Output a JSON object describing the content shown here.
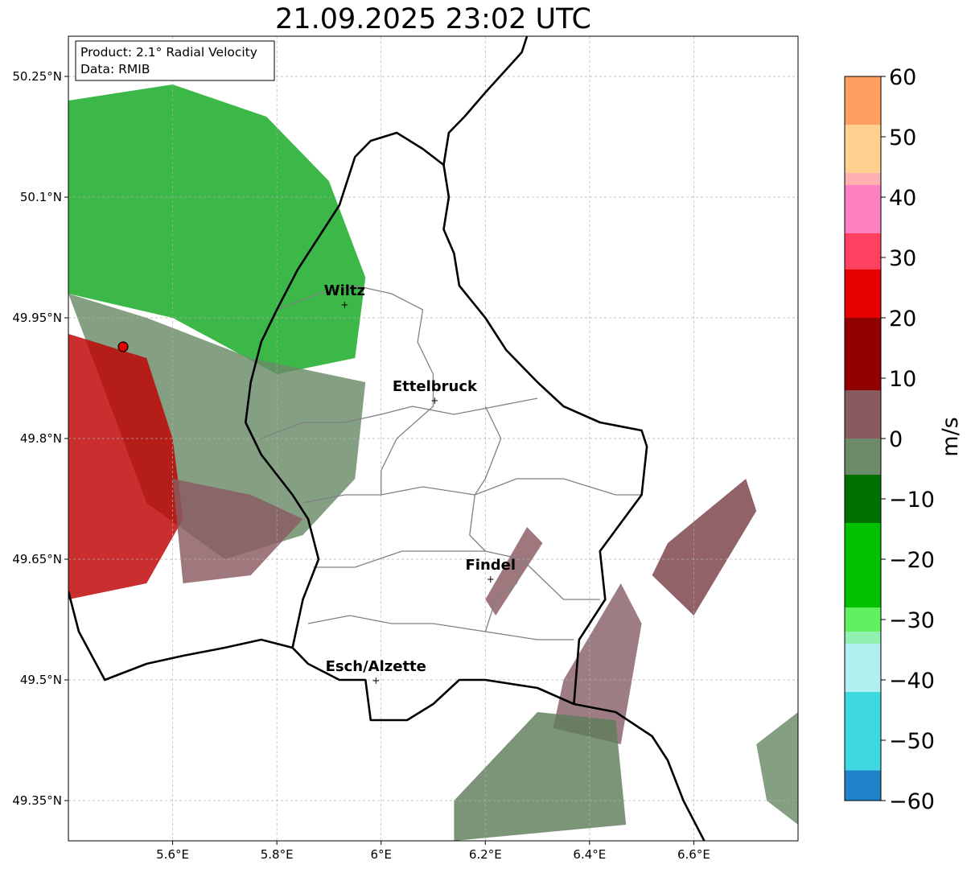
{
  "title": "21.09.2025 23:02 UTC",
  "info_box": {
    "line1": "Product: 2.1° Radial Velocity",
    "line2": "Data: RMIB"
  },
  "map": {
    "lon_range": [
      5.4,
      6.8
    ],
    "lat_range": [
      49.3,
      50.3
    ],
    "lon_ticks": [
      {
        "v": 5.6,
        "label": "5.6°E"
      },
      {
        "v": 5.8,
        "label": "5.8°E"
      },
      {
        "v": 6.0,
        "label": "6°E"
      },
      {
        "v": 6.2,
        "label": "6.2°E"
      },
      {
        "v": 6.4,
        "label": "6.4°E"
      },
      {
        "v": 6.6,
        "label": "6.6°E"
      }
    ],
    "lat_ticks": [
      {
        "v": 50.25,
        "label": "50.25°N"
      },
      {
        "v": 50.1,
        "label": "50.1°N"
      },
      {
        "v": 49.95,
        "label": "49.95°N"
      },
      {
        "v": 49.8,
        "label": "49.8°N"
      },
      {
        "v": 49.65,
        "label": "49.65°N"
      },
      {
        "v": 49.5,
        "label": "49.5°N"
      },
      {
        "v": 49.35,
        "label": "49.35°N"
      }
    ],
    "radar_site": {
      "lon": 5.505,
      "lat": 49.914
    },
    "cities": [
      {
        "name": "Wiltz",
        "lon": 5.93,
        "lat": 49.967
      },
      {
        "name": "Ettelbruck",
        "lon": 6.103,
        "lat": 49.848
      },
      {
        "name": "Findel",
        "lon": 6.21,
        "lat": 49.626
      },
      {
        "name": "Esch/Alzette",
        "lon": 5.99,
        "lat": 49.5
      }
    ],
    "colors": {
      "border": "#000000",
      "cantons": "#808080",
      "grid": "#b0b0b0",
      "radar_site": "#dd0000"
    }
  },
  "colorbar": {
    "label": "m/s",
    "range": [
      -60,
      60
    ],
    "ticks": [
      60,
      50,
      40,
      30,
      20,
      10,
      0,
      -10,
      -20,
      -30,
      -40,
      -50,
      -60
    ],
    "tick_labels": [
      "60",
      "50",
      "40",
      "30",
      "20",
      "10",
      "0",
      "−10",
      "−20",
      "−30",
      "−40",
      "−50",
      "−60"
    ],
    "bands": [
      {
        "from": 52,
        "to": 60,
        "color": "#ffa060"
      },
      {
        "from": 44,
        "to": 52,
        "color": "#ffd090"
      },
      {
        "from": 42,
        "to": 44,
        "color": "#ffb0b0"
      },
      {
        "from": 34,
        "to": 42,
        "color": "#ff80c0"
      },
      {
        "from": 28,
        "to": 34,
        "color": "#ff4060"
      },
      {
        "from": 20,
        "to": 28,
        "color": "#e80000"
      },
      {
        "from": 8,
        "to": 20,
        "color": "#900000"
      },
      {
        "from": 0,
        "to": 8,
        "color": "#8a5a62"
      },
      {
        "from": -6,
        "to": 0,
        "color": "#6a8a68"
      },
      {
        "from": -14,
        "to": -6,
        "color": "#007000"
      },
      {
        "from": -28,
        "to": -14,
        "color": "#00c000"
      },
      {
        "from": -32,
        "to": -28,
        "color": "#60f060"
      },
      {
        "from": -34,
        "to": -32,
        "color": "#90f0b0"
      },
      {
        "from": -42,
        "to": -34,
        "color": "#b0f0f0"
      },
      {
        "from": -55,
        "to": -42,
        "color": "#40d8e0"
      },
      {
        "from": -60,
        "to": -55,
        "color": "#2080c8"
      }
    ]
  },
  "echo_regions": [
    {
      "name": "green-inbound",
      "color": "#10a820",
      "points": [
        [
          5.4,
          50.22
        ],
        [
          5.6,
          50.24
        ],
        [
          5.78,
          50.2
        ],
        [
          5.9,
          50.12
        ],
        [
          5.97,
          50.0
        ],
        [
          5.95,
          49.9
        ],
        [
          5.8,
          49.88
        ],
        [
          5.6,
          49.95
        ],
        [
          5.4,
          49.98
        ]
      ]
    },
    {
      "name": "gray-near-zero",
      "color": "#6a8a68",
      "points": [
        [
          5.4,
          49.98
        ],
        [
          5.55,
          49.95
        ],
        [
          5.75,
          49.9
        ],
        [
          5.97,
          49.87
        ],
        [
          5.95,
          49.75
        ],
        [
          5.85,
          49.68
        ],
        [
          5.7,
          49.65
        ],
        [
          5.55,
          49.72
        ]
      ]
    },
    {
      "name": "red-outbound",
      "color": "#c00000",
      "points": [
        [
          5.4,
          49.93
        ],
        [
          5.55,
          49.9
        ],
        [
          5.6,
          49.8
        ],
        [
          5.62,
          49.7
        ],
        [
          5.55,
          49.62
        ],
        [
          5.4,
          49.6
        ]
      ]
    },
    {
      "name": "mauve-southwest",
      "color": "#8a5a62",
      "points": [
        [
          5.6,
          49.75
        ],
        [
          5.75,
          49.73
        ],
        [
          5.85,
          49.7
        ],
        [
          5.75,
          49.63
        ],
        [
          5.62,
          49.62
        ]
      ]
    },
    {
      "name": "mauve-east-cell",
      "color": "#7a4048",
      "points": [
        [
          6.55,
          49.67
        ],
        [
          6.7,
          49.75
        ],
        [
          6.72,
          49.71
        ],
        [
          6.6,
          49.58
        ],
        [
          6.52,
          49.63
        ]
      ]
    },
    {
      "name": "mauve-southeast",
      "color": "#886068",
      "points": [
        [
          6.35,
          49.5
        ],
        [
          6.46,
          49.62
        ],
        [
          6.5,
          49.57
        ],
        [
          6.46,
          49.42
        ],
        [
          6.33,
          49.44
        ]
      ]
    },
    {
      "name": "gray-southeast",
      "color": "#5f7e5c",
      "points": [
        [
          6.14,
          49.35
        ],
        [
          6.3,
          49.46
        ],
        [
          6.45,
          49.45
        ],
        [
          6.47,
          49.32
        ],
        [
          6.14,
          49.3
        ]
      ]
    },
    {
      "name": "gray-east-edge",
      "color": "#6a8a68",
      "points": [
        [
          6.72,
          49.42
        ],
        [
          6.8,
          49.46
        ],
        [
          6.8,
          49.32
        ],
        [
          6.74,
          49.35
        ]
      ]
    },
    {
      "name": "mauve-findel-streaks",
      "color": "#8a5a62",
      "points": [
        [
          6.2,
          49.6
        ],
        [
          6.28,
          49.69
        ],
        [
          6.31,
          49.67
        ],
        [
          6.22,
          49.58
        ]
      ]
    }
  ],
  "borders": {
    "luxembourg": [
      [
        5.98,
        50.17
      ],
      [
        6.03,
        50.18
      ],
      [
        6.08,
        50.16
      ],
      [
        6.12,
        50.14
      ],
      [
        6.13,
        50.1
      ],
      [
        6.12,
        50.06
      ],
      [
        6.14,
        50.03
      ],
      [
        6.15,
        49.99
      ],
      [
        6.2,
        49.95
      ],
      [
        6.24,
        49.91
      ],
      [
        6.3,
        49.87
      ],
      [
        6.35,
        49.84
      ],
      [
        6.42,
        49.82
      ],
      [
        6.5,
        49.81
      ],
      [
        6.51,
        49.79
      ],
      [
        6.5,
        49.73
      ],
      [
        6.42,
        49.66
      ],
      [
        6.43,
        49.6
      ],
      [
        6.38,
        49.55
      ],
      [
        6.37,
        49.47
      ],
      [
        6.3,
        49.49
      ],
      [
        6.2,
        49.5
      ],
      [
        6.15,
        49.5
      ],
      [
        6.1,
        49.47
      ],
      [
        6.05,
        49.45
      ],
      [
        5.98,
        49.45
      ],
      [
        5.97,
        49.5
      ],
      [
        5.92,
        49.5
      ],
      [
        5.86,
        49.52
      ],
      [
        5.83,
        49.54
      ],
      [
        5.85,
        49.6
      ],
      [
        5.88,
        49.65
      ],
      [
        5.86,
        49.7
      ],
      [
        5.83,
        49.73
      ],
      [
        5.77,
        49.78
      ],
      [
        5.74,
        49.82
      ],
      [
        5.75,
        49.87
      ],
      [
        5.77,
        49.92
      ],
      [
        5.8,
        49.96
      ],
      [
        5.84,
        50.01
      ],
      [
        5.88,
        50.05
      ],
      [
        5.92,
        50.09
      ],
      [
        5.95,
        50.15
      ],
      [
        5.98,
        50.17
      ]
    ],
    "germany_belgium": [
      [
        6.28,
        50.3
      ],
      [
        6.27,
        50.28
      ],
      [
        6.2,
        50.23
      ],
      [
        6.16,
        50.2
      ],
      [
        6.13,
        50.18
      ],
      [
        6.12,
        50.14
      ]
    ],
    "france_belgium": [
      [
        5.4,
        49.61
      ],
      [
        5.42,
        49.56
      ],
      [
        5.47,
        49.5
      ],
      [
        5.55,
        49.52
      ],
      [
        5.62,
        49.53
      ],
      [
        5.7,
        49.54
      ],
      [
        5.77,
        49.55
      ],
      [
        5.83,
        49.54
      ]
    ],
    "france_germany": [
      [
        6.37,
        49.47
      ],
      [
        6.45,
        49.46
      ],
      [
        6.52,
        49.43
      ],
      [
        6.55,
        49.4
      ],
      [
        6.58,
        49.35
      ],
      [
        6.62,
        49.3
      ]
    ]
  },
  "cantons": [
    [
      [
        5.8,
        49.96
      ],
      [
        5.88,
        49.98
      ],
      [
        5.95,
        49.99
      ],
      [
        6.02,
        49.98
      ],
      [
        6.08,
        49.96
      ]
    ],
    [
      [
        5.77,
        49.8
      ],
      [
        5.85,
        49.82
      ],
      [
        5.93,
        49.82
      ],
      [
        6.0,
        49.83
      ],
      [
        6.06,
        49.84
      ],
      [
        6.14,
        49.83
      ],
      [
        6.22,
        49.84
      ],
      [
        6.3,
        49.85
      ]
    ],
    [
      [
        5.85,
        49.72
      ],
      [
        5.93,
        49.73
      ],
      [
        6.0,
        49.73
      ],
      [
        6.08,
        49.74
      ],
      [
        6.18,
        49.73
      ],
      [
        6.26,
        49.75
      ],
      [
        6.35,
        49.75
      ],
      [
        6.45,
        49.73
      ],
      [
        6.5,
        49.73
      ]
    ],
    [
      [
        5.87,
        49.64
      ],
      [
        5.95,
        49.64
      ],
      [
        6.04,
        49.66
      ],
      [
        6.12,
        49.66
      ],
      [
        6.2,
        49.66
      ],
      [
        6.27,
        49.65
      ],
      [
        6.35,
        49.6
      ],
      [
        6.42,
        49.6
      ]
    ],
    [
      [
        5.86,
        49.57
      ],
      [
        5.94,
        49.58
      ],
      [
        6.02,
        49.57
      ],
      [
        6.1,
        49.57
      ],
      [
        6.2,
        49.56
      ],
      [
        6.3,
        49.55
      ],
      [
        6.37,
        49.55
      ]
    ],
    [
      [
        6.08,
        49.96
      ],
      [
        6.07,
        49.92
      ],
      [
        6.1,
        49.88
      ],
      [
        6.1,
        49.84
      ],
      [
        6.03,
        49.8
      ],
      [
        6.0,
        49.76
      ],
      [
        6.0,
        49.73
      ]
    ],
    [
      [
        6.2,
        49.84
      ],
      [
        6.23,
        49.8
      ],
      [
        6.2,
        49.75
      ],
      [
        6.18,
        49.73
      ],
      [
        6.17,
        49.68
      ],
      [
        6.2,
        49.66
      ]
    ],
    [
      [
        6.2,
        49.56
      ],
      [
        6.22,
        49.6
      ],
      [
        6.26,
        49.62
      ],
      [
        6.27,
        49.65
      ]
    ]
  ]
}
